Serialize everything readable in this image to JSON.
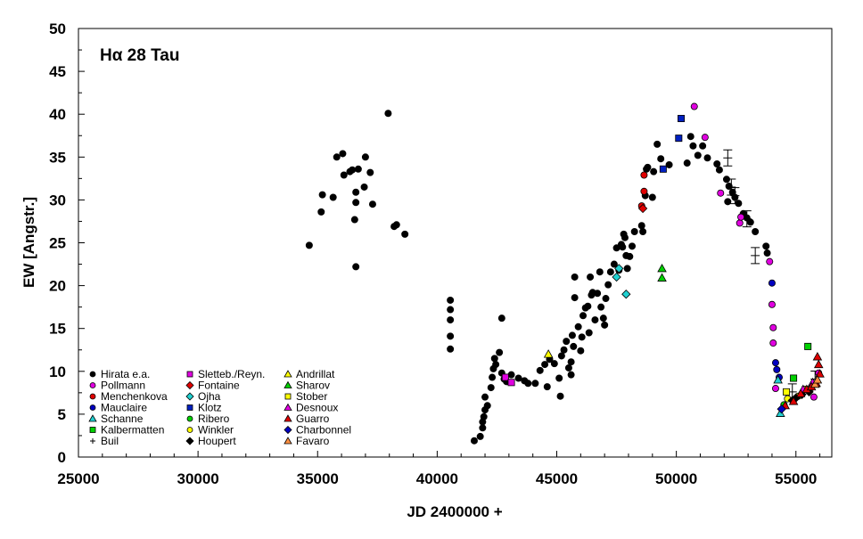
{
  "chart_data": {
    "type": "scatter",
    "title": "Hα 28 Tau",
    "xlabel": "JD 2400000 +",
    "ylabel": "EW [Angstr.]",
    "xlim": [
      25000,
      56500
    ],
    "ylim": [
      0,
      50
    ],
    "x_ticks": [
      25000,
      30000,
      35000,
      40000,
      45000,
      50000,
      55000
    ],
    "y_ticks": [
      0,
      5,
      10,
      15,
      20,
      25,
      30,
      35,
      40,
      45,
      50
    ],
    "grid": false,
    "legend_position": "bottom-left",
    "series": [
      {
        "name": "Hirata e.a.",
        "marker": "circle",
        "color": "#000000",
        "points": [
          [
            34650,
            24.7
          ],
          [
            35150,
            28.6
          ],
          [
            35200,
            30.6
          ],
          [
            35650,
            30.3
          ],
          [
            35800,
            35.0
          ],
          [
            36050,
            35.4
          ],
          [
            36100,
            32.9
          ],
          [
            36350,
            33.3
          ],
          [
            36450,
            33.5
          ],
          [
            36550,
            27.7
          ],
          [
            36600,
            29.7
          ],
          [
            36600,
            22.2
          ],
          [
            36600,
            30.9
          ],
          [
            36700,
            33.6
          ],
          [
            36950,
            31.5
          ],
          [
            37000,
            35.0
          ],
          [
            37200,
            33.2
          ],
          [
            37300,
            29.5
          ],
          [
            37950,
            40.1
          ],
          [
            38200,
            26.9
          ],
          [
            38300,
            27.1
          ],
          [
            38650,
            26.0
          ],
          [
            40550,
            18.3
          ],
          [
            40550,
            17.2
          ],
          [
            40550,
            16.0
          ],
          [
            40550,
            14.1
          ],
          [
            40550,
            12.6
          ],
          [
            41550,
            1.9
          ],
          [
            41800,
            2.4
          ],
          [
            41900,
            3.4
          ],
          [
            41900,
            4.1
          ],
          [
            41950,
            4.7
          ],
          [
            42000,
            5.5
          ],
          [
            42000,
            7.0
          ],
          [
            42100,
            6.0
          ],
          [
            42250,
            8.1
          ],
          [
            42300,
            9.3
          ],
          [
            42350,
            10.3
          ],
          [
            42400,
            11.5
          ],
          [
            42450,
            10.8
          ],
          [
            42600,
            12.2
          ],
          [
            42700,
            16.2
          ],
          [
            42700,
            9.8
          ],
          [
            42800,
            9.1
          ],
          [
            42900,
            8.8
          ],
          [
            43100,
            9.6
          ],
          [
            43400,
            9.2
          ],
          [
            43650,
            8.9
          ],
          [
            43800,
            8.6
          ],
          [
            44100,
            8.6
          ],
          [
            44300,
            10.1
          ],
          [
            44500,
            10.8
          ],
          [
            44600,
            8.2
          ],
          [
            44700,
            11.4
          ],
          [
            44900,
            10.9
          ],
          [
            45100,
            9.2
          ],
          [
            45150,
            7.1
          ],
          [
            45200,
            11.8
          ],
          [
            45300,
            12.5
          ],
          [
            45400,
            13.5
          ],
          [
            45500,
            10.4
          ],
          [
            45600,
            11.1
          ],
          [
            45600,
            9.6
          ],
          [
            45650,
            14.2
          ],
          [
            45700,
            12.9
          ],
          [
            45750,
            18.6
          ],
          [
            45750,
            21.0
          ],
          [
            45900,
            15.2
          ],
          [
            46000,
            12.4
          ],
          [
            46050,
            14.0
          ],
          [
            46100,
            16.5
          ],
          [
            46200,
            17.4
          ],
          [
            46300,
            17.6
          ],
          [
            46350,
            14.5
          ],
          [
            46400,
            21.0
          ],
          [
            46450,
            18.9
          ],
          [
            46500,
            19.2
          ],
          [
            46600,
            16.0
          ],
          [
            46700,
            19.1
          ],
          [
            46800,
            21.6
          ],
          [
            46850,
            17.5
          ],
          [
            46950,
            16.2
          ],
          [
            47000,
            15.4
          ],
          [
            47050,
            18.5
          ],
          [
            47150,
            20.1
          ],
          [
            47250,
            21.6
          ],
          [
            47400,
            22.5
          ],
          [
            47500,
            24.4
          ],
          [
            47600,
            21.8
          ],
          [
            47700,
            24.8
          ],
          [
            47750,
            24.5
          ],
          [
            47800,
            26.0
          ],
          [
            47850,
            25.6
          ],
          [
            47900,
            23.5
          ],
          [
            47950,
            22.0
          ],
          [
            48050,
            23.4
          ],
          [
            48150,
            24.6
          ],
          [
            48250,
            26.3
          ],
          [
            48550,
            27.0
          ],
          [
            48600,
            26.3
          ],
          [
            48700,
            30.5
          ],
          [
            48750,
            33.6
          ],
          [
            48800,
            33.8
          ],
          [
            49000,
            30.3
          ],
          [
            49050,
            33.3
          ],
          [
            49200,
            36.5
          ],
          [
            49350,
            34.8
          ],
          [
            49700,
            34.1
          ],
          [
            50450,
            34.3
          ],
          [
            50600,
            37.4
          ],
          [
            50700,
            36.3
          ],
          [
            50900,
            35.2
          ],
          [
            51100,
            36.3
          ],
          [
            51300,
            34.9
          ],
          [
            51700,
            34.2
          ],
          [
            51800,
            33.5
          ],
          [
            52100,
            32.4
          ],
          [
            52200,
            31.6
          ],
          [
            52350,
            30.9
          ],
          [
            52600,
            29.6
          ],
          [
            52800,
            28.4
          ],
          [
            52950,
            27.9
          ],
          [
            53100,
            27.4
          ],
          [
            53300,
            26.3
          ],
          [
            53750,
            24.6
          ],
          [
            53800,
            23.8
          ],
          [
            52150,
            29.8
          ],
          [
            52450,
            30.3
          ]
        ]
      },
      {
        "name": "Pollmann",
        "marker": "circle",
        "color": "#e000e0",
        "points": [
          [
            50750,
            40.9
          ],
          [
            51200,
            37.3
          ],
          [
            51850,
            30.8
          ],
          [
            52650,
            27.3
          ],
          [
            52700,
            28.0
          ],
          [
            53900,
            22.8
          ],
          [
            54000,
            17.8
          ],
          [
            54050,
            15.1
          ],
          [
            54050,
            13.3
          ],
          [
            54150,
            8.0
          ],
          [
            55650,
            8.1
          ],
          [
            55750,
            7.0
          ],
          [
            55950,
            9.8
          ]
        ]
      },
      {
        "name": "Menchenkova",
        "marker": "circle",
        "color": "#e00000",
        "points": [
          [
            48550,
            29.3
          ],
          [
            48650,
            31.0
          ],
          [
            48650,
            32.9
          ]
        ]
      },
      {
        "name": "Mauclaire",
        "marker": "circle",
        "color": "#0000c0",
        "points": [
          [
            54000,
            20.3
          ],
          [
            54150,
            11.0
          ],
          [
            54200,
            10.2
          ],
          [
            54300,
            9.3
          ]
        ]
      },
      {
        "name": "Schanne",
        "marker": "triangle",
        "color": "#20d0d0",
        "points": [
          [
            54250,
            9.0
          ],
          [
            54350,
            5.1
          ]
        ]
      },
      {
        "name": "Kalbermatten",
        "marker": "square",
        "color": "#00d000",
        "points": [
          [
            54900,
            9.2
          ],
          [
            55500,
            12.9
          ]
        ]
      },
      {
        "name": "Buil",
        "marker": "errorbar",
        "color": "#000000",
        "points": [
          [
            52150,
            34.9
          ],
          [
            52300,
            31.5
          ],
          [
            52450,
            30.5
          ],
          [
            53300,
            23.5
          ],
          [
            52950,
            27.8
          ],
          [
            54850,
            7.6
          ],
          [
            55800,
            9.1
          ]
        ]
      },
      {
        "name": "Sletteb./Reyn.",
        "marker": "square",
        "color": "#e000e0",
        "points": [
          [
            42850,
            9.3
          ],
          [
            43100,
            8.7
          ]
        ]
      },
      {
        "name": "Fontaine",
        "marker": "diamond",
        "color": "#e00000",
        "points": [
          [
            48600,
            29.0
          ]
        ]
      },
      {
        "name": "Ojha",
        "marker": "diamond",
        "color": "#20d0d0",
        "points": [
          [
            47500,
            21.0
          ],
          [
            47600,
            22.0
          ],
          [
            47900,
            19.0
          ]
        ]
      },
      {
        "name": "Klotz",
        "marker": "square",
        "color": "#0020c0",
        "points": [
          [
            49450,
            33.6
          ],
          [
            50100,
            37.2
          ],
          [
            50200,
            39.5
          ]
        ]
      },
      {
        "name": "Ribero",
        "marker": "circle",
        "color": "#00d000",
        "points": [
          [
            54500,
            6.1
          ]
        ]
      },
      {
        "name": "Winkler",
        "marker": "circle",
        "color": "#ffff00",
        "points": [
          [
            54650,
            6.8
          ],
          [
            55100,
            7.1
          ]
        ]
      },
      {
        "name": "Houpert",
        "marker": "diamond",
        "color": "#000000",
        "points": [
          [
            54850,
            6.6
          ],
          [
            55000,
            6.9
          ],
          [
            55250,
            7.3
          ],
          [
            55550,
            7.6
          ]
        ]
      },
      {
        "name": "Andrillat",
        "marker": "triangle",
        "color": "#ffff00",
        "points": [
          [
            44650,
            12.0
          ]
        ]
      },
      {
        "name": "Sharov",
        "marker": "triangle",
        "color": "#00d000",
        "points": [
          [
            49400,
            22.0
          ],
          [
            49400,
            20.9
          ]
        ]
      },
      {
        "name": "Stober",
        "marker": "square",
        "color": "#ffff00",
        "points": [
          [
            54600,
            7.6
          ],
          [
            55400,
            7.9
          ]
        ]
      },
      {
        "name": "Desnoux",
        "marker": "triangle",
        "color": "#e000e0",
        "points": [
          [
            55300,
            7.9
          ],
          [
            55700,
            8.7
          ]
        ]
      },
      {
        "name": "Guarro",
        "marker": "triangle",
        "color": "#e00000",
        "points": [
          [
            54550,
            6.0
          ],
          [
            54900,
            6.5
          ],
          [
            55200,
            7.4
          ],
          [
            55450,
            7.9
          ],
          [
            55650,
            8.2
          ],
          [
            55850,
            8.6
          ],
          [
            55950,
            10.8
          ],
          [
            55900,
            11.7
          ],
          [
            56000,
            9.7
          ]
        ]
      },
      {
        "name": "Charbonnel",
        "marker": "diamond",
        "color": "#0000c0",
        "points": [
          [
            54400,
            5.6
          ]
        ]
      },
      {
        "name": "Favaro",
        "marker": "triangle",
        "color": "#ff9040",
        "points": [
          [
            55800,
            8.5
          ],
          [
            55900,
            9.0
          ]
        ]
      }
    ],
    "legend_columns": [
      [
        "Hirata e.a.",
        "Pollmann",
        "Menchenkova",
        "Mauclaire",
        "Schanne",
        "Kalbermatten",
        "Buil"
      ],
      [
        "Sletteb./Reyn.",
        "Fontaine",
        "Ojha",
        "Klotz",
        "Ribero",
        "Winkler",
        "Houpert"
      ],
      [
        "Andrillat",
        "Sharov",
        "Stober",
        "Desnoux",
        "Guarro",
        "Charbonnel",
        "Favaro"
      ]
    ]
  }
}
